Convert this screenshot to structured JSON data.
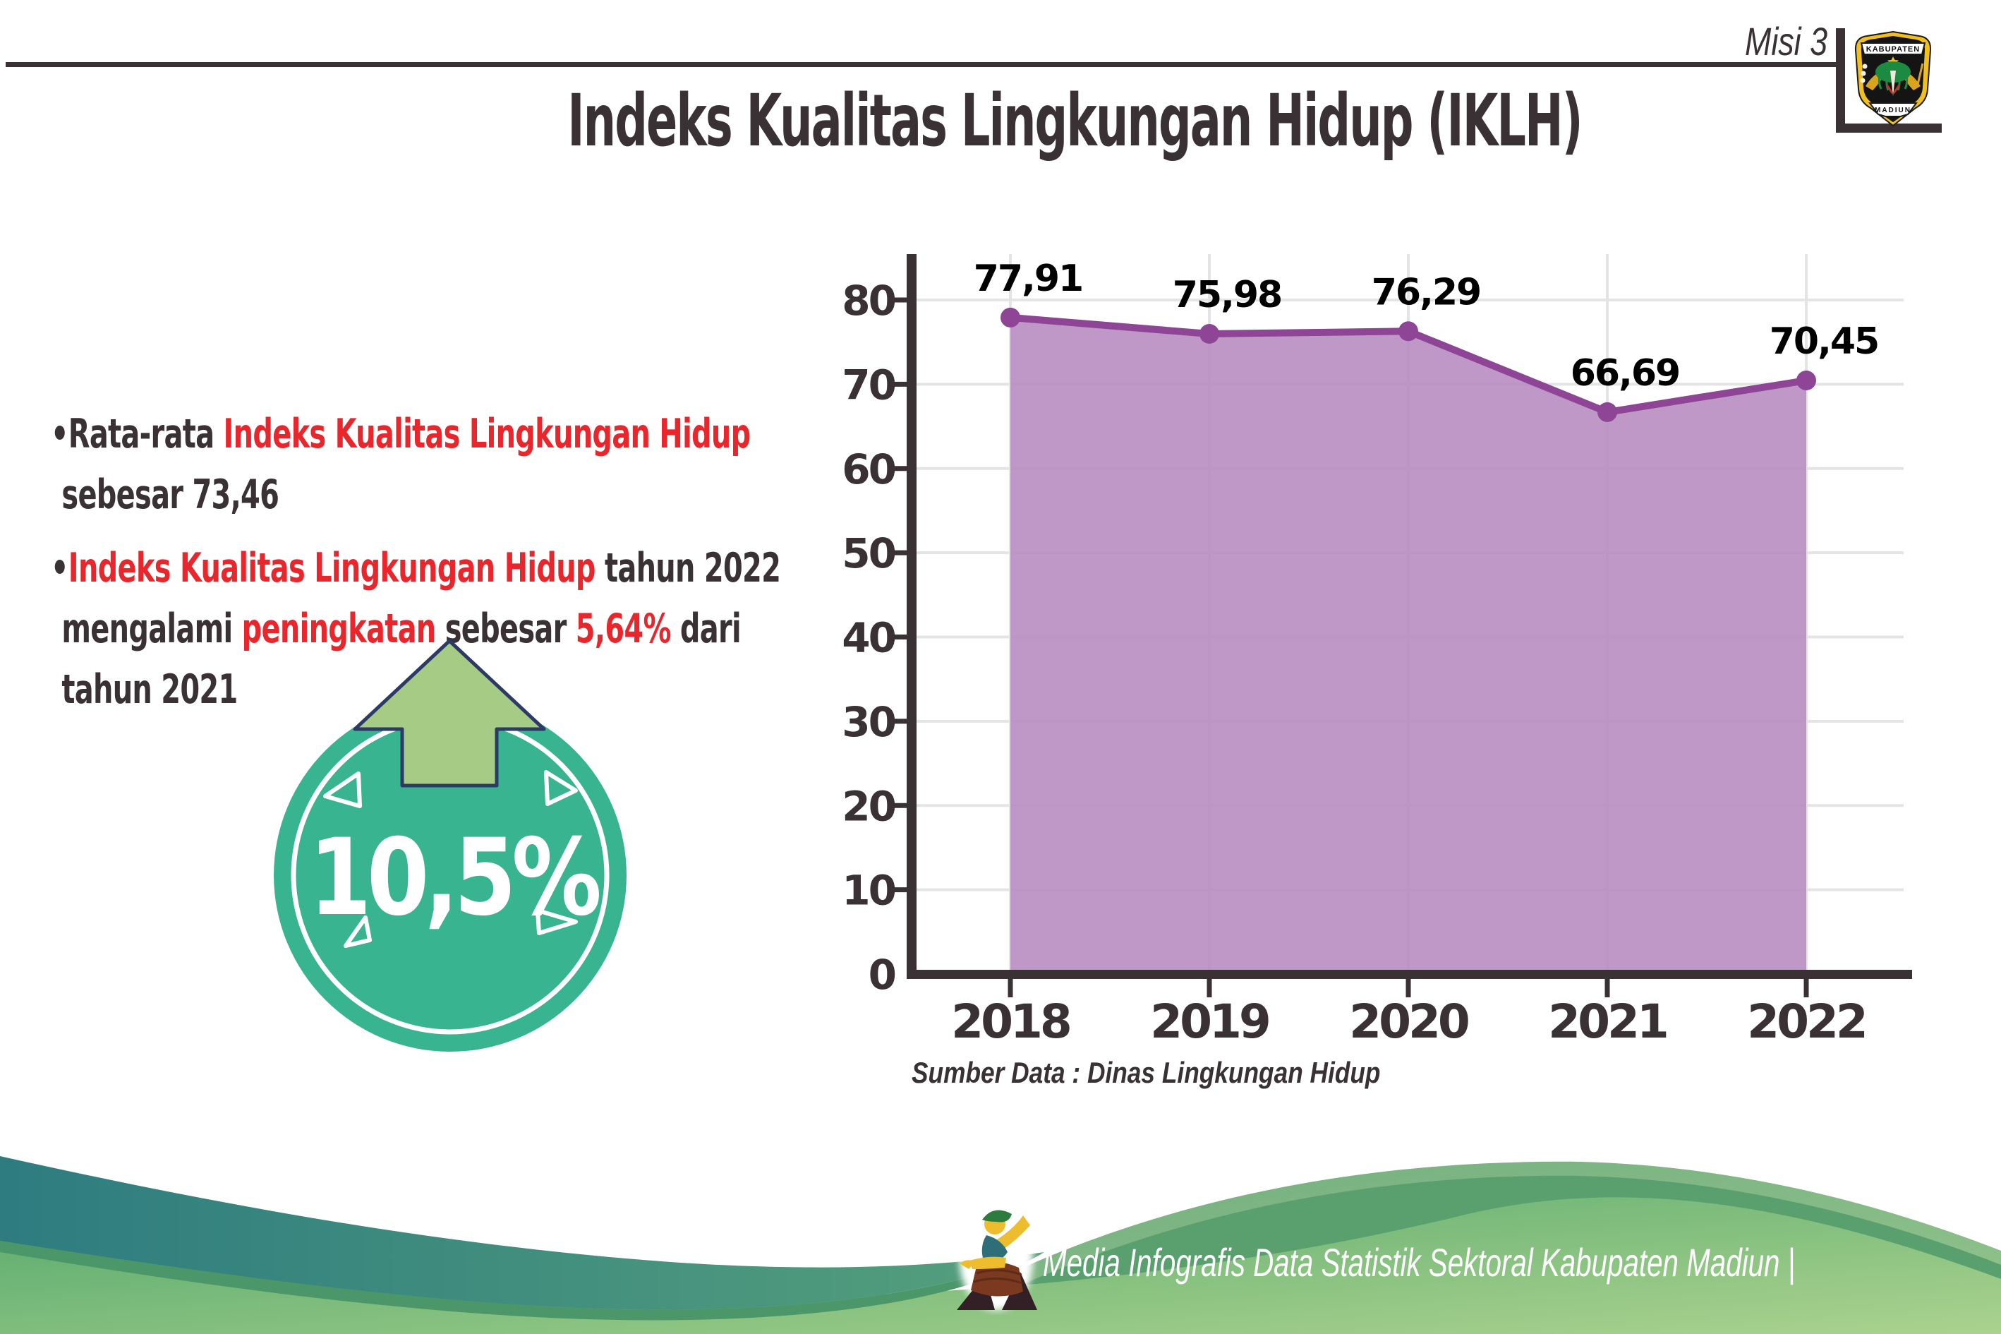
{
  "page": {
    "misi_label": "Misi 3",
    "title": "Indeks Kualitas Lingkungan Hidup (IKLH)"
  },
  "logo": {
    "top_banner": "KABUPATEN",
    "bottom_banner": "MADIUN"
  },
  "insights": [
    {
      "lines": [
        [
          {
            "t": "•Rata-rata ",
            "c": "dark"
          },
          {
            "t": "Indeks Kualitas Lingkungan Hidup",
            "c": "red"
          }
        ],
        [
          {
            "t": "sebesar 73,46",
            "c": "dark"
          }
        ]
      ]
    },
    {
      "lines": [
        [
          {
            "t": "•",
            "c": "dark"
          },
          {
            "t": "Indeks Kualitas Lingkungan Hidup",
            "c": "red"
          },
          {
            "t": " tahun 2022",
            "c": "dark"
          }
        ],
        [
          {
            "t": "mengalami ",
            "c": "dark"
          },
          {
            "t": "peningkatan",
            "c": "red"
          },
          {
            "t": " sebesar ",
            "c": "dark"
          },
          {
            "t": "5,64%",
            "c": "red"
          },
          {
            "t": " dari",
            "c": "dark"
          }
        ],
        [
          {
            "t": "tahun 2021",
            "c": "dark"
          }
        ]
      ]
    }
  ],
  "badge": {
    "value": "10,5%",
    "circle_color": "#38b491",
    "arrow_color": "#a6cb85",
    "arrow_outline": "#2c3a66"
  },
  "chart_data": {
    "type": "area",
    "title": "",
    "categories": [
      "2018",
      "2019",
      "2020",
      "2021",
      "2022"
    ],
    "values": [
      77.91,
      75.98,
      76.29,
      66.69,
      70.45
    ],
    "point_labels": [
      "77,91",
      "75,98",
      "76,29",
      "66,69",
      "70,45"
    ],
    "ylim": [
      0,
      80
    ],
    "yticks": [
      0,
      10,
      20,
      30,
      40,
      50,
      60,
      70,
      80
    ],
    "grid": true,
    "legend": "none",
    "line_color": "#8e4596",
    "fill_color": "#b68abf",
    "axis_color": "#3a3134",
    "grid_color": "#e4e4e4",
    "source_note": "Sumber Data : Dinas Lingkungan Hidup"
  },
  "footer": {
    "credit": "Media Infografis Data Statistik Sektoral Kabupaten Madiun |",
    "teal_color": "#2e7c80",
    "green_color": "#55a96d",
    "green_light": "#abd28e",
    "sage_color": "#72ad80"
  },
  "colors": {
    "text_dark": "#3a3134",
    "accent_red": "#e8262c"
  }
}
